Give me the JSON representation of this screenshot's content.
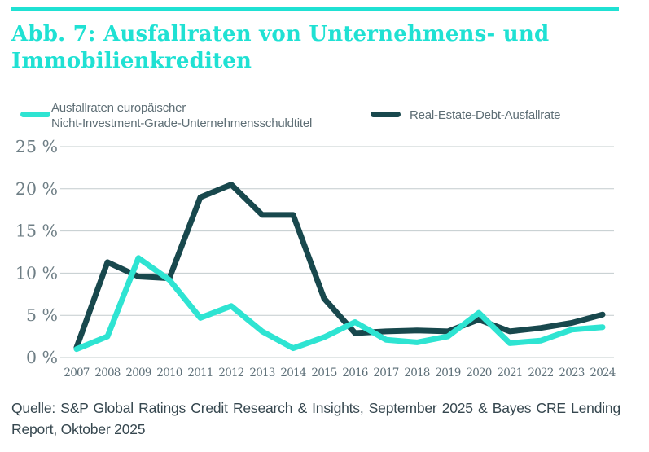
{
  "colors": {
    "accent": "#1FE1D3",
    "grid": "#C3CCCE",
    "y_axis_label": "#6E7E85",
    "x_tick_label": "#5D6F78",
    "legend_text": "#5E6E75",
    "source_text": "#36474F"
  },
  "header": {
    "title_line1": "Abb. 7: Ausfallraten von Unternehmens- und",
    "title_line2": "Immobilienkrediten"
  },
  "legend": {
    "series1_label_line1": "Ausfallraten europäischer",
    "series1_label_line2": "Nicht-Investment-Grade-Unternehmensschuldtitel",
    "series2_label": "Real-Estate-Debt-Ausfallrate"
  },
  "source": {
    "line1": "Quelle: S&P Global Ratings Credit Research & Insights, September 2025 & Bayes CRE Lending",
    "line2": "Report, Oktober 2025"
  },
  "chart_data": {
    "type": "line",
    "title": "Abb. 7: Ausfallraten von Unternehmens- und Immobilienkrediten",
    "categories": [
      "2007",
      "2008",
      "2009",
      "2010",
      "2011",
      "2012",
      "2013",
      "2014",
      "2015",
      "2016",
      "2017",
      "2018",
      "2019",
      "2020",
      "2021",
      "2022",
      "2023",
      "2024"
    ],
    "series": [
      {
        "name": "Ausfallraten europäischer Nicht-Investment-Grade-Unternehmensschuldtitel",
        "color": "#2EE4D2",
        "values": [
          1.0,
          2.5,
          11.8,
          9.2,
          4.7,
          6.1,
          3.1,
          1.1,
          2.4,
          4.2,
          2.1,
          1.8,
          2.5,
          5.3,
          1.7,
          2.0,
          3.3,
          3.6
        ]
      },
      {
        "name": "Real-Estate-Debt-Ausfallrate",
        "color": "#18484D",
        "values": [
          1.2,
          11.3,
          9.6,
          9.4,
          19.0,
          20.5,
          16.9,
          16.9,
          7.0,
          2.9,
          3.1,
          3.2,
          3.1,
          4.5,
          3.1,
          3.5,
          4.1,
          5.1
        ]
      }
    ],
    "yticks": [
      0,
      5,
      10,
      15,
      20,
      25
    ],
    "ytick_suffix": " %",
    "ylim": [
      0,
      25
    ],
    "xlabel": "",
    "ylabel": "",
    "grid": true,
    "legend_position": "top"
  }
}
